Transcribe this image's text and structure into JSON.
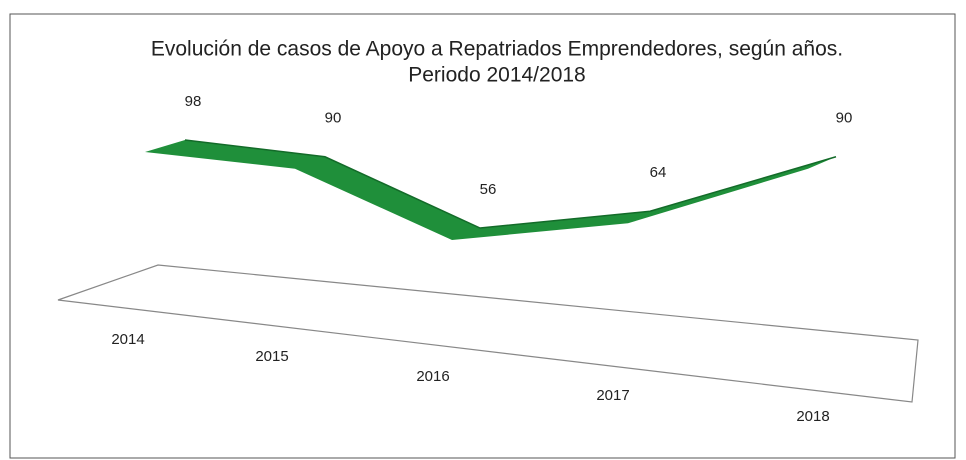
{
  "chart_data": {
    "type": "line",
    "title": "Evolución de casos de Apoyo a Repatriados Emprendedores, según años.",
    "subtitle": "Periodo 2014/2018",
    "categories": [
      "2014",
      "2015",
      "2016",
      "2017",
      "2018"
    ],
    "values": [
      98,
      90,
      56,
      64,
      90
    ],
    "color": "#1f8f3a"
  }
}
